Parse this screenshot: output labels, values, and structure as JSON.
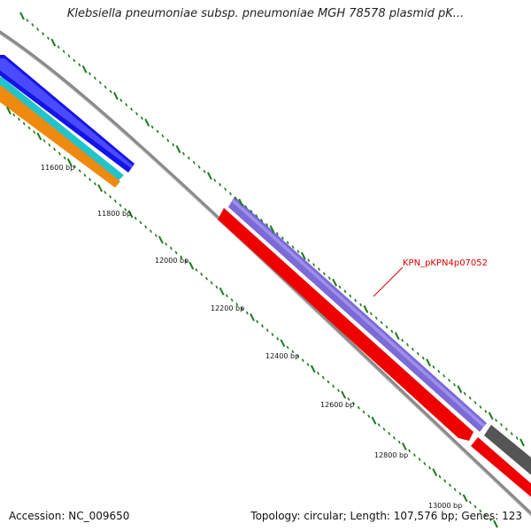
{
  "title": "Klebsiella pneumoniae subsp. pneumoniae MGH 78578 plasmid pK...",
  "footer": {
    "accession": "Accession: NC_009650",
    "summary": "Topology: circular; Length: 107,576 bp; Genes: 123"
  },
  "tick_labels": [
    "11600 bp",
    "11800 bp",
    "12000 bp",
    "12200 bp",
    "12400 bp",
    "12600 bp",
    "12800 bp",
    "13000 bp"
  ],
  "gene_label": "KPN_pKPN4p07052",
  "colors": {
    "backbone": "#888888",
    "tick": "#1f7a1f",
    "gene_blue": "#1414e6",
    "gene_cyan": "#22c4cc",
    "gene_orange": "#ee8a10",
    "gene_purple": "#7b6ad8",
    "gene_red": "#ee0000",
    "gene_gray": "#555555",
    "label": "#e00000"
  }
}
